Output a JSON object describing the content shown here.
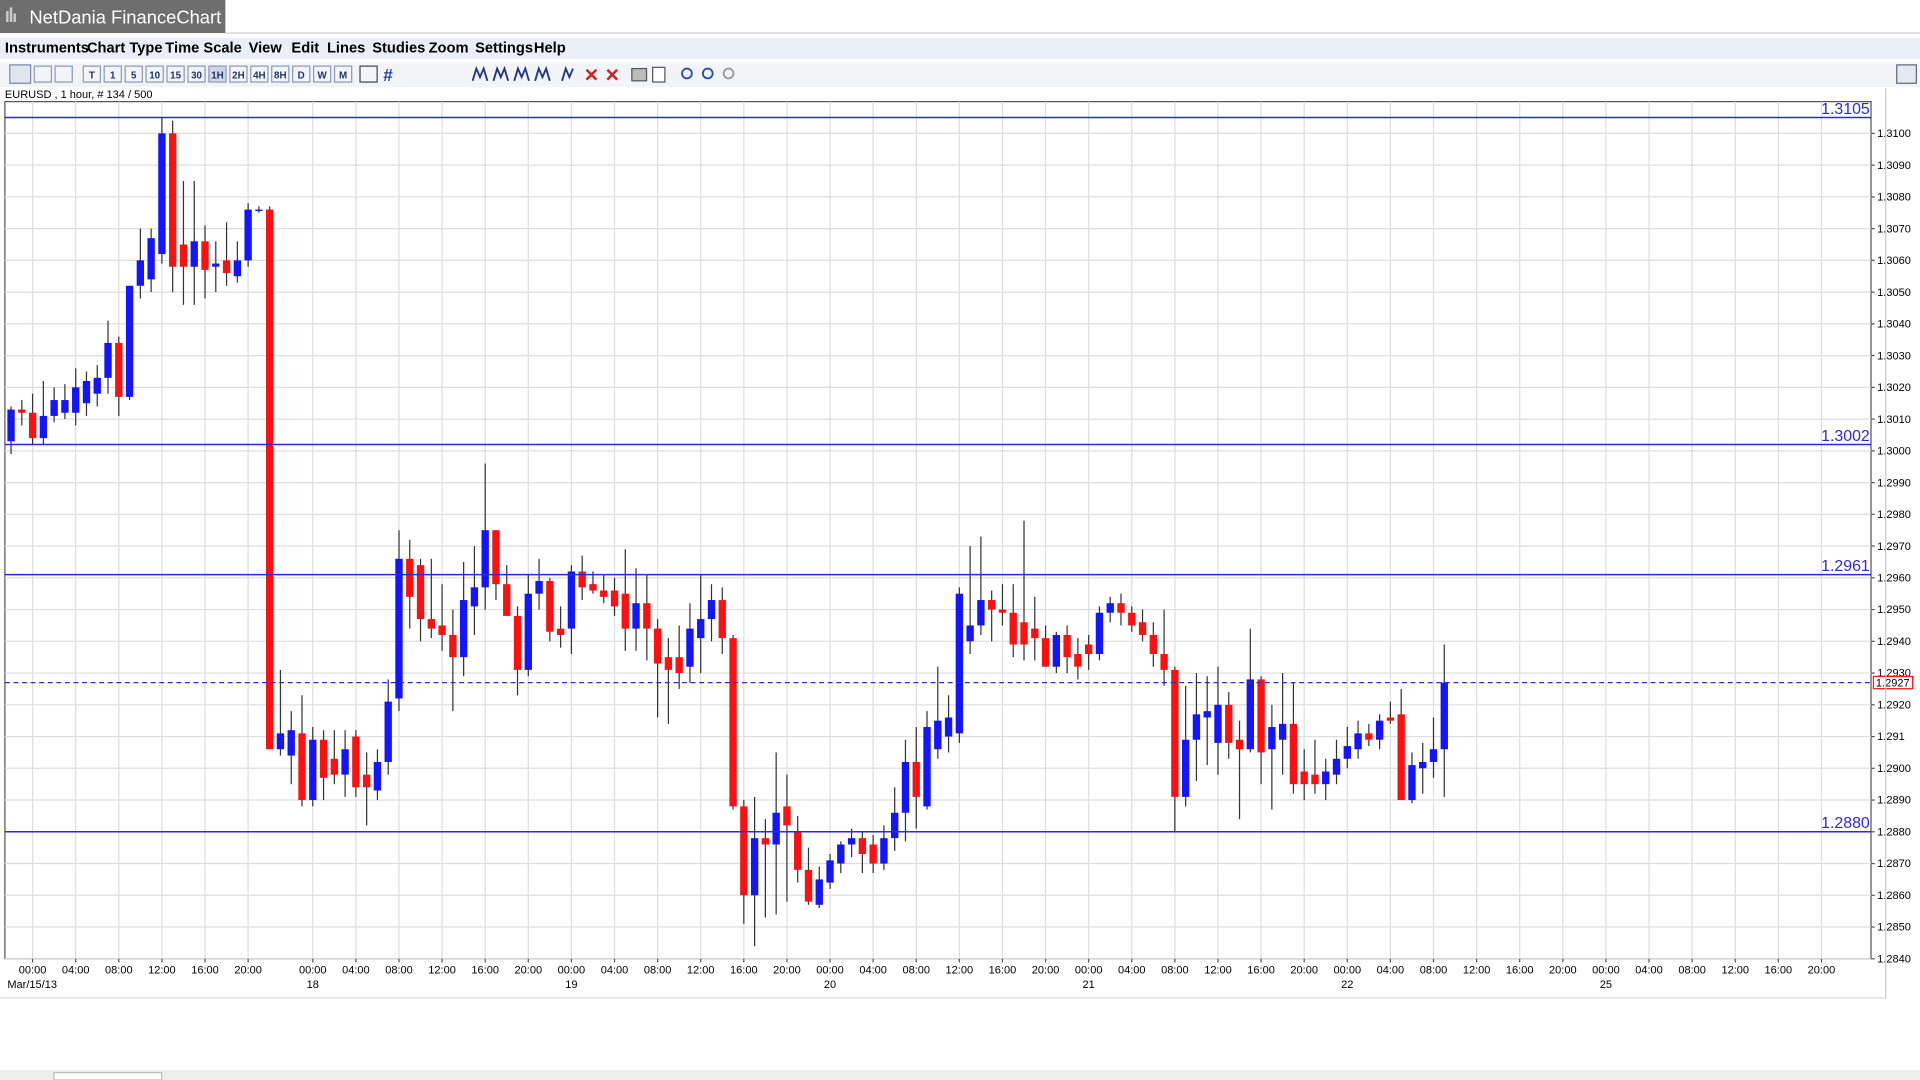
{
  "window": {
    "title": "NetDania FinanceChart"
  },
  "menu": [
    "Instruments",
    "Chart Type",
    "Time Scale",
    "View",
    "Edit",
    "Lines",
    "Studies",
    "Zoom",
    "Settings",
    "Help"
  ],
  "toolbar": {
    "timescales": [
      "T",
      "1",
      "5",
      "10",
      "15",
      "30",
      "1H",
      "2H",
      "4H",
      "8H",
      "D",
      "W",
      "M"
    ]
  },
  "chart_data": {
    "type": "candlestick",
    "symbol_info": "EURUSD , 1 hour, # 134 / 500",
    "up_color": "#1414ff",
    "down_color": "#ff1010",
    "line_color": "#2a2ad8",
    "grid": true,
    "open": [
      1.3003,
      1.3013,
      1.3012,
      1.3004,
      1.3011,
      1.3012,
      1.3012,
      1.3015,
      1.3018,
      1.3023,
      1.3034,
      1.3017,
      1.3052,
      1.3054,
      1.3062,
      1.31,
      1.3065,
      1.3058,
      1.3066,
      1.3058,
      1.306,
      1.3055,
      1.306,
      1.3076,
      1.3076,
      1.2906,
      1.2904,
      1.2911,
      1.289,
      1.2909,
      1.2903,
      1.2898,
      1.291,
      1.2898,
      1.2893,
      1.2902,
      1.2922,
      1.2966,
      1.2964,
      1.2947,
      1.2945,
      1.2942,
      1.2935,
      1.2951,
      1.2957,
      1.2975,
      1.2958,
      1.2948,
      1.2931,
      1.2955,
      1.2959,
      1.2944,
      1.2944,
      1.2962,
      1.2958,
      1.2956,
      1.2956,
      1.2955,
      1.2944,
      1.2952,
      1.2944,
      1.2935,
      1.2935,
      1.2932,
      1.2941,
      1.2947,
      1.2953,
      1.2941,
      1.2888,
      1.286,
      1.2878,
      1.2876,
      1.2888,
      1.288,
      1.2868,
      1.2857,
      1.2864,
      1.287,
      1.2876,
      1.2878,
      1.2876,
      1.287,
      1.2878,
      1.2886,
      1.2902,
      1.2888,
      1.2906,
      1.291,
      1.2911,
      1.294,
      1.2945,
      1.2953,
      1.295,
      1.2949,
      1.2946,
      1.2944,
      1.2941,
      1.2932,
      1.2942,
      1.2936,
      1.2939,
      1.2936,
      1.2949,
      1.2952,
      1.2949,
      1.2946,
      1.2942,
      1.2936,
      1.2931,
      1.2891,
      1.2909,
      1.2916,
      1.2908,
      1.292,
      1.2909,
      1.2906,
      1.2928,
      1.2906,
      1.2909,
      1.2914,
      1.2899,
      1.2898,
      1.2895,
      1.2898,
      1.2903,
      1.2906,
      1.2911,
      1.2909,
      1.2916,
      1.2917,
      1.289,
      1.29,
      1.2902,
      1.2906
    ],
    "high": [
      1.3014,
      1.3016,
      1.3018,
      1.3022,
      1.302,
      1.3021,
      1.3026,
      1.3025,
      1.3027,
      1.3041,
      1.3036,
      1.3052,
      1.307,
      1.307,
      1.3105,
      1.3104,
      1.3085,
      1.3085,
      1.3071,
      1.3066,
      1.3072,
      1.3066,
      1.3078,
      1.3077,
      1.3077,
      1.2931,
      1.2918,
      1.2923,
      1.2913,
      1.2912,
      1.2912,
      1.2912,
      1.2912,
      1.2905,
      1.2906,
      1.2928,
      1.2975,
      1.2972,
      1.2966,
      1.2966,
      1.2958,
      1.295,
      1.2965,
      1.297,
      1.2996,
      1.2975,
      1.2964,
      1.2951,
      1.2961,
      1.2966,
      1.296,
      1.2951,
      1.2964,
      1.2967,
      1.2962,
      1.2961,
      1.296,
      1.2969,
      1.2963,
      1.2961,
      1.2947,
      1.2941,
      1.2945,
      1.2952,
      1.2961,
      1.2958,
      1.2957,
      1.2942,
      1.289,
      1.2891,
      1.2884,
      1.2905,
      1.2898,
      1.2885,
      1.2875,
      1.2869,
      1.2873,
      1.2877,
      1.2881,
      1.288,
      1.2879,
      1.2882,
      1.2894,
      1.2909,
      1.2913,
      1.2918,
      1.2932,
      1.2923,
      1.2957,
      1.297,
      1.2973,
      1.2956,
      1.2958,
      1.2958,
      1.2978,
      1.2954,
      1.2945,
      1.2943,
      1.2945,
      1.2941,
      1.2942,
      1.2951,
      1.2954,
      1.2955,
      1.2951,
      1.295,
      1.2946,
      1.295,
      1.2932,
      1.2926,
      1.293,
      1.2929,
      1.2932,
      1.2924,
      1.2915,
      1.2944,
      1.2929,
      1.292,
      1.293,
      1.2927,
      1.2906,
      1.2909,
      1.2903,
      1.2909,
      1.2913,
      1.2915,
      1.2914,
      1.2917,
      1.2921,
      1.2925,
      1.2905,
      1.2908,
      1.2916,
      1.2939
    ],
    "low": [
      1.2999,
      1.3008,
      1.3002,
      1.3002,
      1.3009,
      1.301,
      1.3008,
      1.3011,
      1.3014,
      1.3018,
      1.3011,
      1.3016,
      1.3048,
      1.305,
      1.3059,
      1.305,
      1.3046,
      1.3046,
      1.3048,
      1.305,
      1.3052,
      1.3053,
      1.3058,
      1.3075,
      1.2906,
      1.2904,
      1.2895,
      1.2888,
      1.2888,
      1.289,
      1.2895,
      1.2891,
      1.2891,
      1.2882,
      1.289,
      1.2898,
      1.2918,
      1.2944,
      1.294,
      1.2941,
      1.2937,
      1.2918,
      1.2929,
      1.2942,
      1.295,
      1.2953,
      1.295,
      1.2923,
      1.2929,
      1.295,
      1.294,
      1.2938,
      1.2936,
      1.2953,
      1.2955,
      1.2952,
      1.2948,
      1.2937,
      1.2937,
      1.2934,
      1.2916,
      1.2914,
      1.2925,
      1.2927,
      1.293,
      1.294,
      1.2936,
      1.2887,
      1.2851,
      1.2844,
      1.2853,
      1.2854,
      1.2858,
      1.2864,
      1.2857,
      1.2856,
      1.2862,
      1.2867,
      1.2872,
      1.2867,
      1.2867,
      1.2868,
      1.2874,
      1.2877,
      1.2881,
      1.2887,
      1.2903,
      1.2905,
      1.2908,
      1.2936,
      1.2942,
      1.294,
      1.2945,
      1.2935,
      1.2934,
      1.2934,
      1.2932,
      1.293,
      1.293,
      1.2928,
      1.2931,
      1.2934,
      1.2946,
      1.2945,
      1.2943,
      1.294,
      1.2932,
      1.2926,
      1.288,
      1.2888,
      1.2896,
      1.2901,
      1.2898,
      1.2903,
      1.2884,
      1.2905,
      1.2895,
      1.2887,
      1.2898,
      1.2892,
      1.289,
      1.2892,
      1.289,
      1.2895,
      1.29,
      1.2903,
      1.2907,
      1.2906,
      1.2914,
      1.289,
      1.2889,
      1.2892,
      1.2897,
      1.2891
    ],
    "close": [
      1.3013,
      1.3012,
      1.3004,
      1.3011,
      1.3016,
      1.3016,
      1.302,
      1.3022,
      1.3023,
      1.3034,
      1.3017,
      1.3052,
      1.306,
      1.3067,
      1.31,
      1.3058,
      1.3058,
      1.3066,
      1.3057,
      1.3059,
      1.3056,
      1.306,
      1.3076,
      1.3076,
      1.2906,
      1.2911,
      1.2912,
      1.289,
      1.2909,
      1.2897,
      1.2898,
      1.2906,
      1.2894,
      1.2894,
      1.2902,
      1.2921,
      1.2966,
      1.2954,
      1.2947,
      1.2944,
      1.2942,
      1.2935,
      1.2953,
      1.2957,
      1.2975,
      1.2958,
      1.2948,
      1.2931,
      1.2955,
      1.2959,
      1.2943,
      1.2942,
      1.2962,
      1.2957,
      1.2956,
      1.2954,
      1.2951,
      1.2944,
      1.2952,
      1.2944,
      1.2933,
      1.2931,
      1.293,
      1.2944,
      1.2947,
      1.2953,
      1.2941,
      1.2888,
      1.286,
      1.2878,
      1.2876,
      1.2886,
      1.2882,
      1.2868,
      1.2858,
      1.2865,
      1.2871,
      1.2876,
      1.2878,
      1.2873,
      1.287,
      1.2878,
      1.2886,
      1.2902,
      1.2891,
      1.2913,
      1.2915,
      1.2916,
      1.2955,
      1.2945,
      1.2953,
      1.295,
      1.2949,
      1.2939,
      1.2939,
      1.2941,
      1.2932,
      1.2942,
      1.2935,
      1.2932,
      1.2936,
      1.2949,
      1.2952,
      1.2949,
      1.2945,
      1.2942,
      1.2936,
      1.2931,
      1.2891,
      1.2909,
      1.2917,
      1.2918,
      1.292,
      1.2908,
      1.2906,
      1.2928,
      1.2905,
      1.2913,
      1.2914,
      1.2895,
      1.2895,
      1.2895,
      1.2899,
      1.2903,
      1.2907,
      1.2911,
      1.2909,
      1.2915,
      1.2915,
      1.289,
      1.2901,
      1.2902,
      1.2906,
      1.2927
    ],
    "hlines": [
      1.3105,
      1.3002,
      1.2961,
      {
        "value": 1.288,
        "label": "1.2880"
      }
    ],
    "last": 1.2927,
    "xlim": [
      -0.57,
      172.6
    ],
    "ylim": [
      1.284,
      1.311
    ],
    "yticks": [
      {
        "value": 1.284,
        "label": "1.2840"
      },
      {
        "value": 1.285,
        "label": "1.2850"
      },
      {
        "value": 1.286,
        "label": "1.2860"
      },
      {
        "value": 1.287,
        "label": "1.2870"
      },
      {
        "value": 1.288,
        "label": "1.2880"
      },
      {
        "value": 1.289,
        "label": "1.2890"
      },
      {
        "value": 1.29,
        "label": "1.2900"
      },
      1.291,
      {
        "value": 1.292,
        "label": "1.2920"
      },
      {
        "value": 1.293,
        "label": "1.2930"
      },
      {
        "value": 1.294,
        "label": "1.2940"
      },
      {
        "value": 1.295,
        "label": "1.2950"
      },
      {
        "value": 1.296,
        "label": "1.2960"
      },
      {
        "value": 1.297,
        "label": "1.2970"
      },
      {
        "value": 1.298,
        "label": "1.2980"
      },
      {
        "value": 1.299,
        "label": "1.2990"
      },
      {
        "value": 1.3,
        "label": "1.3000"
      },
      {
        "value": 1.301,
        "label": "1.3010"
      },
      {
        "value": 1.302,
        "label": "1.3020"
      },
      {
        "value": 1.303,
        "label": "1.3030"
      },
      {
        "value": 1.304,
        "label": "1.3040"
      },
      {
        "value": 1.305,
        "label": "1.3050"
      },
      {
        "value": 1.306,
        "label": "1.3060"
      },
      {
        "value": 1.307,
        "label": "1.3070"
      },
      {
        "value": 1.308,
        "label": "1.3080"
      },
      {
        "value": 1.309,
        "label": "1.3090"
      },
      {
        "value": 1.31,
        "label": "1.3100"
      }
    ],
    "xticks": [
      {
        "value": 2,
        "label": "00:00"
      },
      {
        "value": 6,
        "label": "04:00"
      },
      {
        "value": 10,
        "label": "08:00"
      },
      {
        "value": 14,
        "label": "12:00"
      },
      {
        "value": 18,
        "label": "16:00"
      },
      {
        "value": 22,
        "label": "20:00"
      },
      {
        "value": 28,
        "label": "00:00"
      },
      {
        "value": 32,
        "label": "04:00"
      },
      {
        "value": 36,
        "label": "08:00"
      },
      {
        "value": 40,
        "label": "12:00"
      },
      {
        "value": 44,
        "label": "16:00"
      },
      {
        "value": 48,
        "label": "20:00"
      },
      {
        "value": 52,
        "label": "00:00"
      },
      {
        "value": 56,
        "label": "04:00"
      },
      {
        "value": 60,
        "label": "08:00"
      },
      {
        "value": 64,
        "label": "12:00"
      },
      {
        "value": 68,
        "label": "16:00"
      },
      {
        "value": 72,
        "label": "20:00"
      },
      {
        "value": 76,
        "label": "00:00"
      },
      {
        "value": 80,
        "label": "04:00"
      },
      {
        "value": 84,
        "label": "08:00"
      },
      {
        "value": 88,
        "label": "12:00"
      },
      {
        "value": 92,
        "label": "16:00"
      },
      {
        "value": 96,
        "label": "20:00"
      },
      {
        "value": 100,
        "label": "00:00"
      },
      {
        "value": 104,
        "label": "04:00"
      },
      {
        "value": 108,
        "label": "08:00"
      },
      {
        "value": 112,
        "label": "12:00"
      },
      {
        "value": 116,
        "label": "16:00"
      },
      {
        "value": 120,
        "label": "20:00"
      },
      {
        "value": 124,
        "label": "00:00"
      },
      {
        "value": 128,
        "label": "04:00"
      },
      {
        "value": 132,
        "label": "08:00"
      },
      {
        "value": 136,
        "label": "12:00"
      },
      {
        "value": 140,
        "label": "16:00"
      },
      {
        "value": 144,
        "label": "20:00"
      },
      {
        "value": 148,
        "label": "00:00"
      },
      {
        "value": 152,
        "label": "04:00"
      },
      {
        "value": 156,
        "label": "08:00"
      },
      {
        "value": 160,
        "label": "12:00"
      },
      {
        "value": 164,
        "label": "16:00"
      },
      {
        "value": 168,
        "label": "20:00"
      }
    ],
    "xdates": [
      {
        "value": 2,
        "label": "Mar/15/13"
      },
      {
        "value": 28,
        "label": "18"
      },
      {
        "value": 52,
        "label": "19"
      },
      {
        "value": 76,
        "label": "20"
      },
      {
        "value": 100,
        "label": "21"
      },
      {
        "value": 124,
        "label": "22"
      },
      {
        "value": 148,
        "label": "25"
      }
    ]
  }
}
